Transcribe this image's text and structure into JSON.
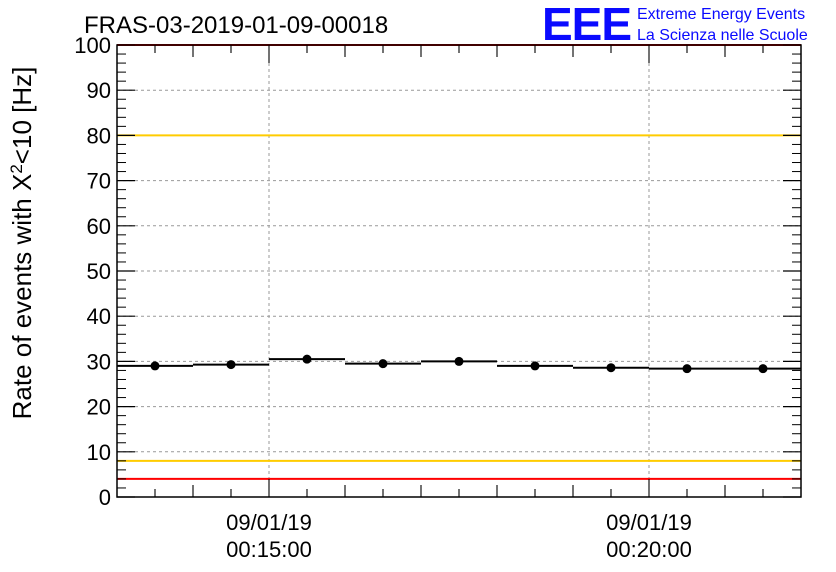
{
  "chart_data": {
    "type": "scatter",
    "title": "FRAS-03-2019-01-09-00018",
    "ylabel": "Rate of events with X²<10 [Hz]",
    "ylabel_main": "Rate of events with X",
    "ylabel_sup": "2",
    "ylabel_tail": "<10 [Hz]",
    "xlabel": "",
    "ylim": [
      0,
      100
    ],
    "yticks": [
      "0",
      "10",
      "20",
      "30",
      "40",
      "50",
      "60",
      "70",
      "80",
      "90",
      "100"
    ],
    "xlim": [
      0,
      9
    ],
    "xticks": [
      {
        "x": 2,
        "date": "09/01/19",
        "time": "00:15:00"
      },
      {
        "x": 7,
        "date": "09/01/19",
        "time": "00:20:00"
      }
    ],
    "grid": true,
    "series": [
      {
        "x": [
          0.5,
          1.5,
          2.5,
          3.5,
          4.5,
          5.5,
          6.5,
          7.5,
          8.5
        ],
        "y": [
          29,
          29.3,
          30.5,
          29.5,
          30,
          29,
          28.6,
          28.4,
          28.4
        ],
        "xerr": 0.5,
        "color": "#000000"
      }
    ],
    "reference_lines": [
      {
        "y": 100,
        "color": "#ff0000"
      },
      {
        "y": 80,
        "color": "#ffcc00"
      },
      {
        "y": 8,
        "color": "#ffcc00"
      },
      {
        "y": 4,
        "color": "#ff0000"
      }
    ]
  },
  "brand": {
    "logo": "EEE",
    "line1": "Extreme Energy Events",
    "line2": "La Scienza nelle Scuole",
    "color": "#0a0aff"
  }
}
